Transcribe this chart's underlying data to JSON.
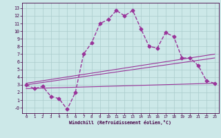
{
  "xlabel": "Windchill (Refroidissement éolien,°C)",
  "bg_color": "#cce8e8",
  "grid_color": "#aacccc",
  "line_color": "#993399",
  "x_ticks": [
    0,
    1,
    2,
    3,
    4,
    5,
    6,
    7,
    8,
    9,
    10,
    11,
    12,
    13,
    14,
    15,
    16,
    17,
    18,
    19,
    20,
    21,
    22,
    23
  ],
  "y_ticks": [
    0,
    1,
    2,
    3,
    4,
    5,
    6,
    7,
    8,
    9,
    10,
    11,
    12,
    13
  ],
  "y_tick_labels": [
    "-0",
    "1",
    "2",
    "3",
    "4",
    "5",
    "6",
    "7",
    "8",
    "9",
    "10",
    "11",
    "12",
    "13"
  ],
  "xlim": [
    -0.5,
    23.5
  ],
  "ylim": [
    -0.7,
    13.7
  ],
  "main_line_x": [
    0,
    1,
    2,
    3,
    4,
    5,
    6,
    7,
    8,
    9,
    10,
    11,
    12,
    13,
    14,
    15,
    16,
    17,
    18,
    19,
    20,
    21,
    22,
    23
  ],
  "main_line_y": [
    3.0,
    2.5,
    2.8,
    1.5,
    1.2,
    -0.2,
    2.0,
    7.0,
    8.5,
    11.0,
    11.5,
    12.7,
    12.0,
    12.7,
    10.3,
    8.0,
    7.8,
    9.8,
    9.3,
    6.5,
    6.5,
    5.5,
    3.5,
    3.2
  ],
  "line2_x": [
    0,
    23
  ],
  "line2_y": [
    3.0,
    6.5
  ],
  "line3_x": [
    0,
    23
  ],
  "line3_y": [
    3.2,
    7.0
  ],
  "line4_x": [
    0,
    23
  ],
  "line4_y": [
    2.5,
    3.2
  ],
  "lw_main": 1.0,
  "lw_trend": 0.8,
  "marker_size": 2.5
}
